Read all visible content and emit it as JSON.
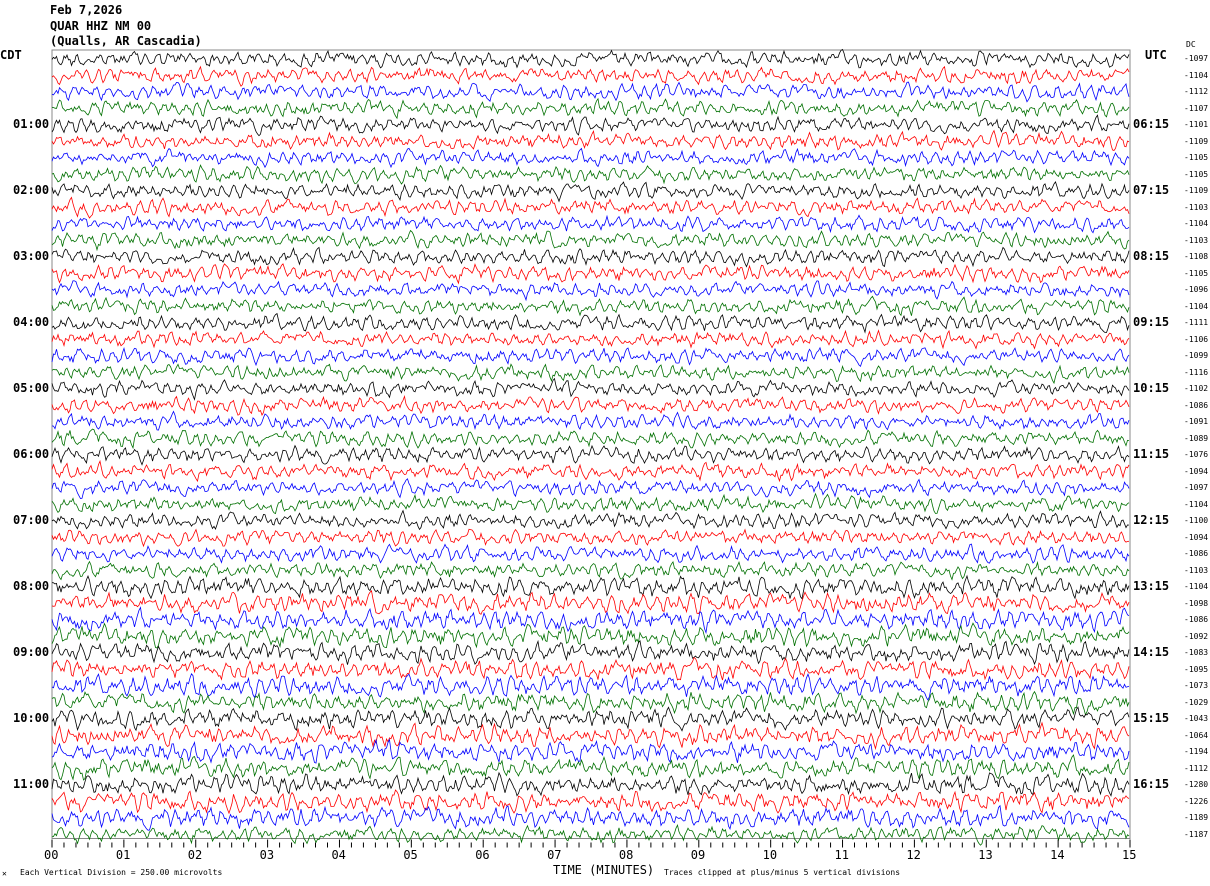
{
  "header": {
    "date": "Feb 7,2026",
    "station": "QUAR HHZ NM 00",
    "location": "(Qualls, AR Cascadia)"
  },
  "chart_data": {
    "type": "line",
    "subtype": "helicorder",
    "left_timezone": "CDT",
    "right_timezone": "UTC",
    "dc_label": "DC",
    "left_hour_labels": [
      "01:00",
      "02:00",
      "03:00",
      "04:00",
      "05:00",
      "06:00",
      "07:00",
      "08:00",
      "09:00",
      "10:00",
      "11:00"
    ],
    "right_hour_labels": [
      "06:15",
      "07:15",
      "08:15",
      "09:15",
      "10:15",
      "11:15",
      "12:15",
      "13:15",
      "14:15",
      "15:15",
      "16:15"
    ],
    "trace_minutes": 15,
    "trace_count": 48,
    "trace_colors": [
      "#000000",
      "#ff0000",
      "#0000ff",
      "#007000"
    ],
    "dc_offsets": [
      "-1097",
      "-1104",
      "-1112",
      "-1107",
      "-1101",
      "-1109",
      "-1105",
      "-1105",
      "-1109",
      "-1103",
      "-1104",
      "-1103",
      "-1108",
      "-1105",
      "-1096",
      "-1104",
      "-1111",
      "-1106",
      "-1099",
      "-1116",
      "-1102",
      "-1086",
      "-1091",
      "-1089",
      "-1076",
      "-1094",
      "-1097",
      "-1104",
      "-1100",
      "-1094",
      "-1086",
      "-1103",
      "-1104",
      "-1098",
      "-1086",
      "-1092",
      "-1083",
      "-1095",
      "-1073",
      "-1029",
      "-1043",
      "-1064",
      "-1194",
      "-1112",
      "-1280",
      "-1226",
      "-1189",
      "-1187"
    ],
    "x_ticks": [
      "00",
      "01",
      "02",
      "03",
      "04",
      "05",
      "06",
      "07",
      "08",
      "09",
      "10",
      "11",
      "12",
      "13",
      "14",
      "15"
    ],
    "xlabel": "TIME (MINUTES)",
    "scale_note": "Each Vertical Division =  250.00 microvolts",
    "clip_note": "Traces clipped at plus/minus 5 vertical divisions"
  }
}
